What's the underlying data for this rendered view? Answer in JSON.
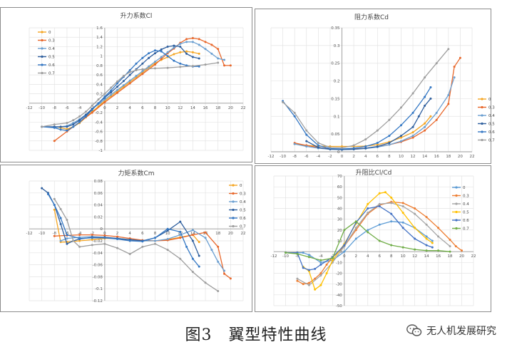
{
  "caption": "图3　翼型特性曲线",
  "watermark": {
    "text": "无人机发展研究",
    "icon": "wechat-icon"
  },
  "chart_data": [
    {
      "type": "line",
      "title": "升力系数Cl",
      "xlim": [
        -12,
        22
      ],
      "ylim": [
        -1,
        1.6
      ],
      "xticks": [
        -12,
        -10,
        -8,
        -6,
        -4,
        -2,
        0,
        2,
        4,
        6,
        8,
        10,
        12,
        14,
        16,
        18,
        20,
        22
      ],
      "yticks": [
        -1,
        -0.8,
        -0.6,
        -0.4,
        -0.2,
        0,
        0.2,
        0.4,
        0.6,
        0.8,
        1,
        1.2,
        1.4,
        1.6
      ],
      "legend": "top-left",
      "series": [
        {
          "name": "0",
          "color": "#f5a623",
          "x": [
            -8,
            -7,
            -6,
            -5,
            -4,
            -3,
            -2,
            -1,
            0,
            1,
            2,
            3,
            4,
            5,
            6,
            7,
            8,
            9,
            10,
            11,
            12,
            13,
            14,
            15
          ],
          "y": [
            -0.5,
            -0.52,
            -0.55,
            -0.5,
            -0.42,
            -0.3,
            -0.18,
            -0.07,
            0.05,
            0.15,
            0.25,
            0.35,
            0.45,
            0.55,
            0.65,
            0.75,
            0.85,
            0.92,
            0.98,
            1.04,
            1.08,
            1.1,
            1.08,
            1.05
          ]
        },
        {
          "name": "0.3",
          "color": "#e8672b",
          "x": [
            -8,
            -6,
            -4,
            -2,
            0,
            2,
            4,
            6,
            8,
            9,
            10,
            11,
            12,
            13,
            14,
            15,
            16,
            17,
            18,
            19,
            20
          ],
          "y": [
            -0.8,
            -0.6,
            -0.4,
            -0.2,
            0.02,
            0.22,
            0.42,
            0.62,
            0.82,
            0.94,
            1.06,
            1.16,
            1.28,
            1.36,
            1.38,
            1.36,
            1.3,
            1.24,
            1.15,
            0.8,
            0.8
          ]
        },
        {
          "name": "0.4",
          "color": "#6b9fd1",
          "x": [
            -8,
            -7,
            -6,
            -5,
            -4,
            -3,
            -2,
            -1,
            0,
            1,
            2,
            3,
            4,
            5,
            6,
            7,
            8,
            9,
            10,
            11,
            12,
            13,
            14,
            15,
            16,
            17,
            18,
            19
          ],
          "y": [
            -0.52,
            -0.5,
            -0.48,
            -0.42,
            -0.34,
            -0.24,
            -0.12,
            -0.02,
            0.08,
            0.18,
            0.28,
            0.38,
            0.48,
            0.58,
            0.68,
            0.78,
            0.88,
            0.98,
            1.08,
            1.18,
            1.26,
            1.3,
            1.3,
            1.24,
            1.15,
            1.05,
            0.95,
            0.92
          ]
        },
        {
          "name": "0.5",
          "color": "#2f5f9e",
          "x": [
            -10,
            -8,
            -7,
            -6,
            -5,
            -4,
            -3,
            -2,
            -1,
            0,
            1,
            2,
            3,
            4,
            5,
            6,
            7,
            8,
            9,
            10,
            11,
            12,
            13,
            14,
            15
          ],
          "y": [
            -0.5,
            -0.5,
            -0.5,
            -0.5,
            -0.45,
            -0.36,
            -0.25,
            -0.12,
            0,
            0.12,
            0.23,
            0.35,
            0.47,
            0.6,
            0.72,
            0.84,
            0.96,
            1.06,
            1.14,
            1.2,
            1.22,
            1.2,
            1.05,
            0.98,
            0.95
          ]
        },
        {
          "name": "0.6",
          "color": "#3578c4",
          "x": [
            -10,
            -8,
            -7,
            -6,
            -5,
            -4,
            -3,
            -2,
            -1,
            0,
            1,
            2,
            3,
            4,
            5,
            6,
            7,
            8,
            9,
            10,
            11,
            12,
            13,
            14,
            15
          ],
          "y": [
            -0.5,
            -0.52,
            -0.56,
            -0.58,
            -0.5,
            -0.4,
            -0.28,
            -0.14,
            0,
            0.14,
            0.27,
            0.42,
            0.56,
            0.7,
            0.84,
            0.96,
            1.06,
            1.12,
            1.1,
            1.0,
            0.9,
            0.84,
            0.8,
            0.78,
            0.78
          ]
        },
        {
          "name": "0.7",
          "color": "#9e9e9e",
          "x": [
            -10,
            -8,
            -6,
            -5,
            -4,
            -3,
            -2,
            -1,
            0,
            1,
            2,
            3,
            4,
            5,
            6,
            8,
            10,
            12,
            14,
            16,
            18
          ],
          "y": [
            -0.5,
            -0.45,
            -0.42,
            -0.36,
            -0.28,
            -0.18,
            -0.05,
            0.08,
            0.2,
            0.33,
            0.46,
            0.58,
            0.66,
            0.7,
            0.72,
            0.74,
            0.75,
            0.77,
            0.79,
            0.82,
            0.86
          ]
        }
      ]
    },
    {
      "type": "line",
      "title": "阻力系数Cd",
      "xlim": [
        -12,
        22
      ],
      "ylim": [
        0,
        0.35
      ],
      "xticks": [
        -12,
        -10,
        -8,
        -6,
        -4,
        -2,
        0,
        2,
        4,
        6,
        8,
        10,
        12,
        14,
        16,
        18,
        20,
        22
      ],
      "yticks": [
        0,
        0.05,
        0.1,
        0.15,
        0.2,
        0.25,
        0.3,
        0.35
      ],
      "legend": "right",
      "series": [
        {
          "name": "0",
          "color": "#f5a623",
          "x": [
            -8,
            -6,
            -4,
            -2,
            0,
            2,
            4,
            6,
            8,
            10,
            12,
            14,
            15
          ],
          "y": [
            0.022,
            0.018,
            0.016,
            0.015,
            0.015,
            0.015,
            0.016,
            0.02,
            0.028,
            0.04,
            0.055,
            0.08,
            0.1
          ]
        },
        {
          "name": "0.3",
          "color": "#e8672b",
          "x": [
            -8,
            -6,
            -4,
            -2,
            0,
            2,
            4,
            6,
            8,
            10,
            12,
            14,
            16,
            18,
            19,
            20
          ],
          "y": [
            0.025,
            0.018,
            0.012,
            0.008,
            0.007,
            0.008,
            0.01,
            0.014,
            0.02,
            0.028,
            0.04,
            0.06,
            0.09,
            0.135,
            0.24,
            0.265
          ]
        },
        {
          "name": "0.4",
          "color": "#6b9fd1",
          "x": [
            -8,
            -6,
            -4,
            -2,
            0,
            2,
            4,
            6,
            8,
            10,
            12,
            14,
            16,
            18,
            19
          ],
          "y": [
            0.022,
            0.015,
            0.01,
            0.007,
            0.006,
            0.007,
            0.009,
            0.013,
            0.02,
            0.03,
            0.045,
            0.07,
            0.11,
            0.16,
            0.21
          ]
        },
        {
          "name": "0.5",
          "color": "#2f5f9e",
          "x": [
            -6,
            -4,
            -2,
            0,
            2,
            4,
            6,
            8,
            10,
            12,
            13,
            14,
            15
          ],
          "y": [
            0.03,
            0.012,
            0.007,
            0.006,
            0.007,
            0.01,
            0.015,
            0.025,
            0.045,
            0.07,
            0.1,
            0.13,
            0.15
          ]
        },
        {
          "name": "0.6",
          "color": "#3578c4",
          "x": [
            -10,
            -8,
            -6,
            -4,
            -2,
            0,
            2,
            4,
            6,
            8,
            10,
            12,
            14,
            15
          ],
          "y": [
            0.143,
            0.1,
            0.048,
            0.018,
            0.009,
            0.008,
            0.01,
            0.015,
            0.025,
            0.045,
            0.075,
            0.11,
            0.155,
            0.182
          ]
        },
        {
          "name": "0.7",
          "color": "#9e9e9e",
          "x": [
            -10,
            -8,
            -6,
            -4,
            -2,
            0,
            2,
            4,
            6,
            8,
            10,
            12,
            14,
            16,
            18
          ],
          "y": [
            0.14,
            0.11,
            0.06,
            0.025,
            0.012,
            0.011,
            0.018,
            0.035,
            0.06,
            0.09,
            0.125,
            0.165,
            0.21,
            0.25,
            0.29
          ]
        }
      ]
    },
    {
      "type": "line",
      "title": "力矩系数Cm",
      "xlim": [
        -12,
        22
      ],
      "ylim": [
        -0.12,
        0.08
      ],
      "xticks": [
        -12,
        -10,
        -8,
        -6,
        -4,
        -2,
        0,
        2,
        4,
        6,
        8,
        10,
        12,
        14,
        16,
        18,
        20,
        22
      ],
      "yticks": [
        -0.12,
        -0.1,
        -0.08,
        -0.06,
        -0.04,
        -0.02,
        0,
        0.02,
        0.04,
        0.06,
        0.08
      ],
      "legend": "top-right",
      "series": [
        {
          "name": "0",
          "color": "#f5a623",
          "x": [
            -8,
            -7,
            -6,
            -4,
            -2,
            0,
            2,
            4,
            6,
            8,
            10,
            12,
            14,
            15
          ],
          "y": [
            0.032,
            -0.022,
            -0.022,
            -0.02,
            -0.018,
            -0.016,
            -0.016,
            -0.018,
            -0.02,
            -0.02,
            -0.018,
            -0.014,
            -0.01,
            -0.022
          ]
        },
        {
          "name": "0.3",
          "color": "#e8672b",
          "x": [
            -8,
            -6,
            -4,
            -2,
            0,
            2,
            4,
            6,
            8,
            10,
            12,
            14,
            16,
            18,
            19,
            20
          ],
          "y": [
            -0.012,
            -0.011,
            -0.01,
            -0.01,
            -0.011,
            -0.013,
            -0.016,
            -0.019,
            -0.02,
            -0.019,
            -0.015,
            -0.01,
            -0.006,
            -0.03,
            -0.075,
            -0.083
          ]
        },
        {
          "name": "0.4",
          "color": "#6b9fd1",
          "x": [
            -7,
            -6,
            -4,
            -2,
            0,
            2,
            4,
            6,
            8,
            10,
            12,
            14,
            16,
            17,
            18,
            19
          ],
          "y": [
            -0.02,
            -0.016,
            -0.014,
            -0.013,
            -0.014,
            -0.016,
            -0.018,
            -0.02,
            -0.02,
            -0.017,
            -0.01,
            -0.002,
            -0.015,
            -0.035,
            -0.055,
            -0.07
          ]
        },
        {
          "name": "0.5",
          "color": "#2f5f9e",
          "x": [
            -10,
            -9,
            -8,
            -7,
            -6,
            -5,
            -4,
            -2,
            0,
            2,
            4,
            6,
            8,
            10,
            12,
            14,
            15
          ],
          "y": [
            0.068,
            0.06,
            0.04,
            0.008,
            -0.025,
            -0.02,
            -0.017,
            -0.014,
            -0.014,
            -0.016,
            -0.018,
            -0.02,
            -0.015,
            -0.003,
            0.012,
            -0.02,
            -0.045
          ]
        },
        {
          "name": "0.6",
          "color": "#3578c4",
          "x": [
            -9,
            -8,
            -7,
            -6,
            -4,
            -2,
            0,
            2,
            4,
            6,
            8,
            10,
            12,
            13,
            14,
            15
          ],
          "y": [
            0.058,
            0.04,
            0.018,
            -0.01,
            -0.016,
            -0.015,
            -0.015,
            -0.017,
            -0.02,
            -0.021,
            -0.015,
            0.0,
            -0.005,
            -0.03,
            -0.05,
            -0.063
          ]
        },
        {
          "name": "0.7",
          "color": "#9e9e9e",
          "x": [
            -8,
            -7,
            -6,
            -5,
            -4,
            -2,
            0,
            2,
            4,
            6,
            8,
            10,
            12,
            14,
            16,
            18
          ],
          "y": [
            0.05,
            0.033,
            0.015,
            -0.02,
            -0.03,
            -0.027,
            -0.025,
            -0.032,
            -0.042,
            -0.03,
            -0.025,
            -0.035,
            -0.05,
            -0.072,
            -0.09,
            -0.104
          ]
        }
      ]
    },
    {
      "type": "line",
      "title": "升阻比Cl/Cd",
      "xlim": [
        -12,
        22
      ],
      "ylim": [
        -50,
        70
      ],
      "xticks": [
        -12,
        -10,
        -8,
        -6,
        -4,
        -2,
        0,
        2,
        4,
        6,
        8,
        10,
        12,
        14,
        16,
        18,
        20,
        22
      ],
      "yticks": [
        -50,
        -40,
        -30,
        -20,
        -10,
        0,
        10,
        20,
        30,
        40,
        50,
        60,
        70
      ],
      "legend": "right",
      "series": [
        {
          "name": "0",
          "color": "#5b9bd5",
          "x": [
            -8,
            -7,
            -6,
            -4,
            -2,
            0,
            2,
            4,
            6,
            8,
            10,
            12,
            14,
            15
          ],
          "y": [
            -1,
            -1,
            -3,
            -10,
            -8,
            0,
            12,
            20,
            25,
            28,
            27,
            22,
            14,
            10
          ]
        },
        {
          "name": "0.3",
          "color": "#ed7d31",
          "x": [
            -8,
            -7,
            -6,
            -5,
            -4,
            -3,
            -2,
            0,
            2,
            4,
            6,
            8,
            10,
            12,
            14,
            16,
            18,
            19,
            20
          ],
          "y": [
            -27,
            -30,
            -29,
            -25,
            -20,
            -12,
            -5,
            5,
            20,
            35,
            43,
            46,
            45,
            40,
            32,
            22,
            11,
            5,
            1
          ]
        },
        {
          "name": "0.4",
          "color": "#a5a5a5",
          "x": [
            -8,
            -6,
            -4,
            -2,
            0,
            2,
            4,
            6,
            8,
            10,
            12,
            14,
            16,
            18
          ],
          "y": [
            -25,
            -31,
            -22,
            -10,
            5,
            22,
            36,
            44,
            45,
            42,
            35,
            25,
            14,
            5
          ]
        },
        {
          "name": "0.5",
          "color": "#ffc000",
          "x": [
            -7,
            -6,
            -5,
            -4,
            -3,
            -2,
            0,
            2,
            4,
            6,
            7,
            8,
            10,
            12,
            14,
            15
          ],
          "y": [
            -14,
            -18,
            -35,
            -31,
            -20,
            -8,
            7,
            26,
            44,
            54,
            55,
            50,
            36,
            22,
            12,
            8
          ]
        },
        {
          "name": "0.6",
          "color": "#4472c4",
          "x": [
            -10,
            -8,
            -7,
            -6,
            -5,
            -4,
            -2,
            0,
            2,
            4,
            6,
            8,
            10,
            12,
            14,
            15
          ],
          "y": [
            -1,
            -1,
            -15,
            -17,
            -16,
            -12,
            -5,
            6,
            27,
            40,
            42,
            35,
            22,
            12,
            6,
            4
          ]
        },
        {
          "name": "0.7",
          "color": "#70ad47",
          "x": [
            -10,
            -8,
            -6,
            -4,
            -2,
            0,
            2,
            4,
            6,
            8,
            10,
            12,
            14,
            16,
            18
          ],
          "y": [
            -1,
            -2,
            -5,
            -8,
            -6,
            20,
            28,
            18,
            10,
            6,
            4,
            2,
            1,
            1,
            0
          ]
        }
      ]
    }
  ]
}
